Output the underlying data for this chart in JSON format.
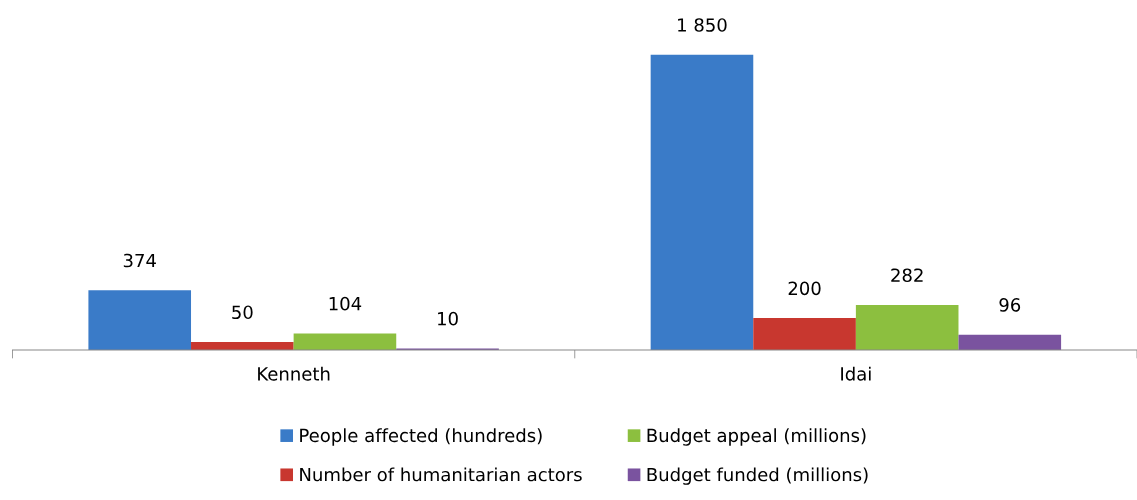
{
  "chart_data": {
    "type": "bar",
    "categories": [
      "Kenneth",
      "Idai"
    ],
    "series": [
      {
        "name": "People affected (hundreds)",
        "color": "#3a7bc8",
        "values": [
          374,
          1850
        ],
        "value_labels": [
          "374",
          "1 850"
        ]
      },
      {
        "name": "Number of humanitarian actors",
        "color": "#c8372f",
        "values": [
          50,
          200
        ],
        "value_labels": [
          "50",
          "200"
        ]
      },
      {
        "name": "Budget appeal (millions)",
        "color": "#8cbf3f",
        "values": [
          104,
          282
        ],
        "value_labels": [
          "104",
          "282"
        ]
      },
      {
        "name": "Budget funded (millions)",
        "color": "#7a539f",
        "values": [
          10,
          96
        ],
        "value_labels": [
          "10",
          "96"
        ]
      }
    ],
    "legend": "bottom",
    "grid": false
  }
}
